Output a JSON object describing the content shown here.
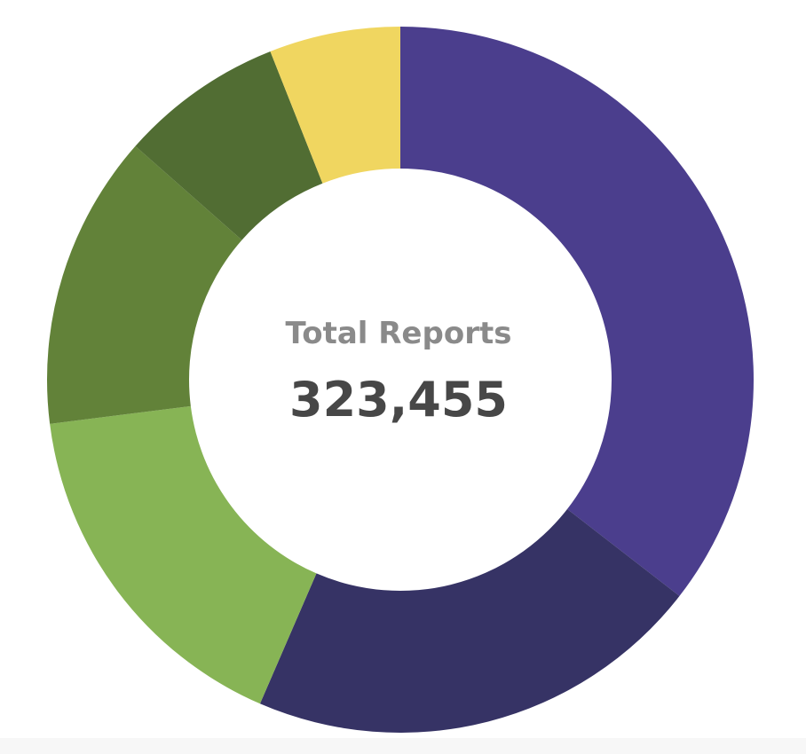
{
  "chart_data": {
    "type": "pie",
    "center_title": "Total Reports",
    "center_value": "323,455",
    "slices": [
      {
        "value": 35.5,
        "color": "#4b3e8d"
      },
      {
        "value": 21.0,
        "color": "#363365"
      },
      {
        "value": 16.5,
        "color": "#87b455"
      },
      {
        "value": 13.5,
        "color": "#628239"
      },
      {
        "value": 7.5,
        "color": "#516d33"
      },
      {
        "value": 6.0,
        "color": "#f0d660"
      }
    ],
    "start_angle_deg": 0,
    "direction": "clockwise"
  }
}
